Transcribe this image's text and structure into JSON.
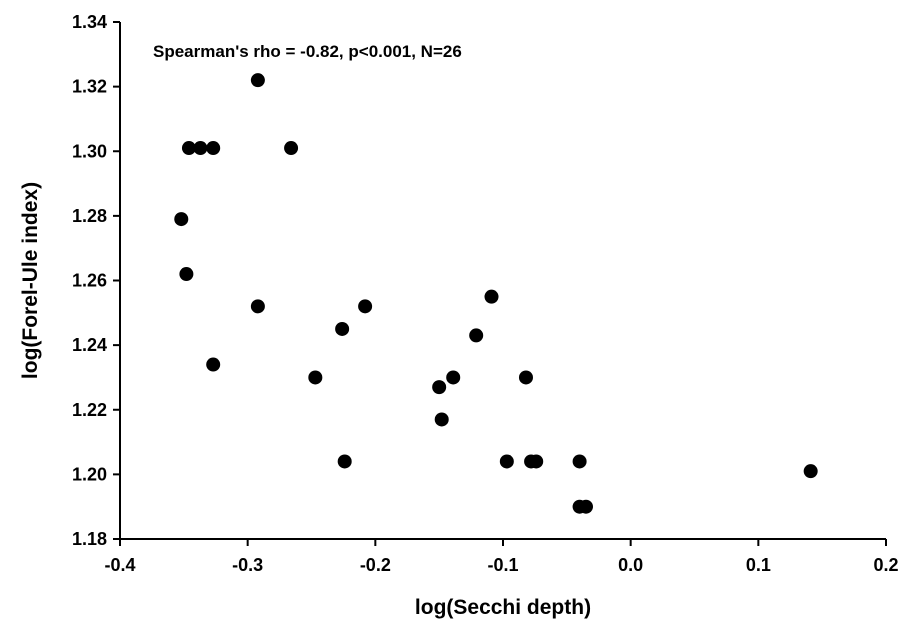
{
  "chart_data": {
    "type": "scatter",
    "title": "",
    "xlabel": "log(Secchi depth)",
    "ylabel": "log(Forel-Ule index)",
    "annotation": "Spearman's rho = -0.82, p<0.001, N=26",
    "xlim": [
      -0.4,
      0.2
    ],
    "ylim": [
      1.18,
      1.34
    ],
    "xticks": [
      -0.4,
      -0.3,
      -0.2,
      -0.1,
      0.0,
      0.1,
      0.2
    ],
    "xtick_labels": [
      "-0.4",
      "-0.3",
      "-0.2",
      "-0.1",
      "0.0",
      "0.1",
      "0.2"
    ],
    "yticks": [
      1.18,
      1.2,
      1.22,
      1.24,
      1.26,
      1.28,
      1.3,
      1.32,
      1.34
    ],
    "ytick_labels": [
      "1.18",
      "1.20",
      "1.22",
      "1.24",
      "1.26",
      "1.28",
      "1.30",
      "1.32",
      "1.34"
    ],
    "grid": false,
    "marker_color": "#000000",
    "points": [
      {
        "x": -0.292,
        "y": 1.322
      },
      {
        "x": -0.346,
        "y": 1.301
      },
      {
        "x": -0.337,
        "y": 1.301
      },
      {
        "x": -0.327,
        "y": 1.301
      },
      {
        "x": -0.266,
        "y": 1.301
      },
      {
        "x": -0.352,
        "y": 1.279
      },
      {
        "x": -0.348,
        "y": 1.262
      },
      {
        "x": -0.292,
        "y": 1.252
      },
      {
        "x": -0.208,
        "y": 1.252
      },
      {
        "x": -0.226,
        "y": 1.245
      },
      {
        "x": -0.327,
        "y": 1.234
      },
      {
        "x": -0.247,
        "y": 1.23
      },
      {
        "x": -0.224,
        "y": 1.204
      },
      {
        "x": -0.109,
        "y": 1.255
      },
      {
        "x": -0.121,
        "y": 1.243
      },
      {
        "x": -0.15,
        "y": 1.227
      },
      {
        "x": -0.139,
        "y": 1.23
      },
      {
        "x": -0.148,
        "y": 1.217
      },
      {
        "x": -0.082,
        "y": 1.23
      },
      {
        "x": -0.097,
        "y": 1.204
      },
      {
        "x": -0.078,
        "y": 1.204
      },
      {
        "x": -0.074,
        "y": 1.204
      },
      {
        "x": -0.04,
        "y": 1.204
      },
      {
        "x": -0.04,
        "y": 1.19
      },
      {
        "x": -0.035,
        "y": 1.19
      },
      {
        "x": 0.141,
        "y": 1.201
      }
    ]
  }
}
